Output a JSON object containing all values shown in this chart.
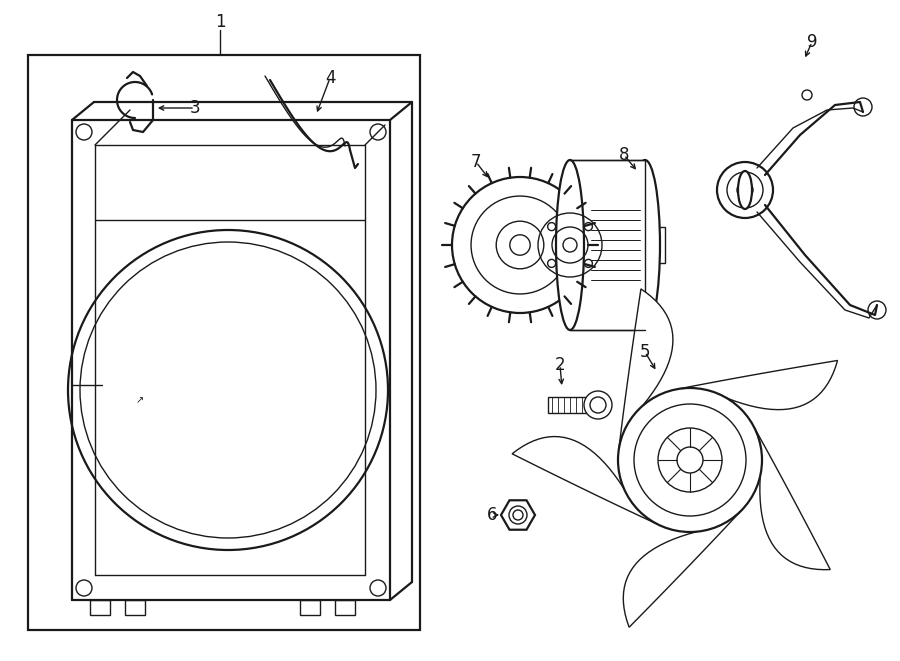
{
  "bg_color": "#ffffff",
  "line_color": "#1a1a1a",
  "line_width": 1.0,
  "fig_width": 9.0,
  "fig_height": 6.61,
  "font_size": 12
}
